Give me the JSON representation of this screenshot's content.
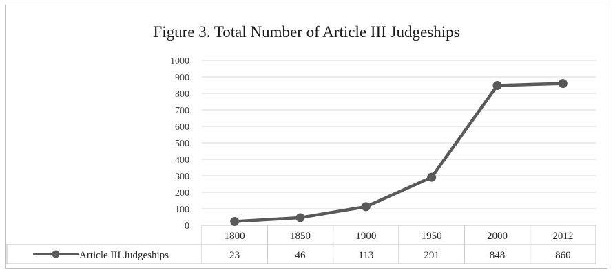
{
  "chart_data": {
    "type": "line",
    "title": "Figure 3. Total Number of Article III Judgeships",
    "categories": [
      "1800",
      "1850",
      "1900",
      "1950",
      "2000",
      "2012"
    ],
    "series": [
      {
        "name": "Article III Judgeships",
        "values": [
          23,
          46,
          113,
          291,
          848,
          860
        ],
        "color": "#595959"
      }
    ],
    "yticks": [
      "0",
      "100",
      "200",
      "300",
      "400",
      "500",
      "600",
      "700",
      "800",
      "900",
      "1000"
    ],
    "ylim": [
      0,
      1000
    ],
    "grid": true,
    "legend": "data-table-left",
    "data_table": true
  }
}
